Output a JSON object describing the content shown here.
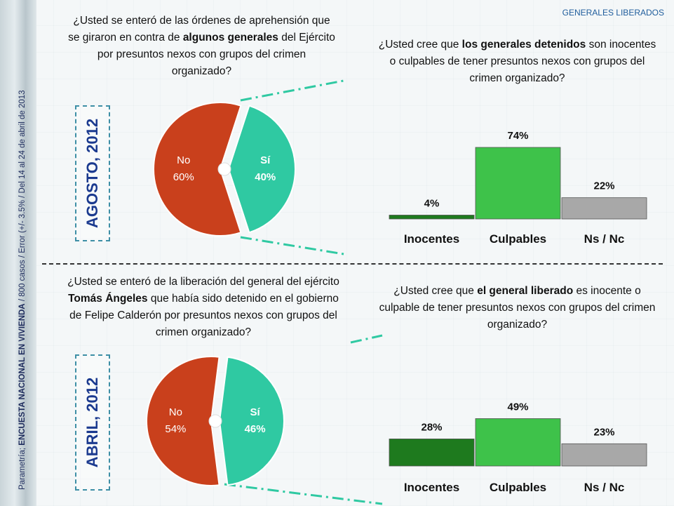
{
  "header": {
    "title": "GENERALES LIBERADOS"
  },
  "sidebar": {
    "source": "Parametría; ",
    "survey": "ENCUESTA NACIONAL EN VIVIENDA",
    "details": " / 800 casos / Error (+/- 3.5% / Del 14 al 24  de abril de 2013"
  },
  "sections": [
    {
      "period": "AGOSTO, 2012"
    },
    {
      "period": "ABRIL, 2012"
    }
  ],
  "questions": {
    "q1": {
      "pre": "¿Usted se enteró de las órdenes de aprehensión que se giraron en contra de ",
      "bold": "algunos generales",
      "post": " del Ejército por presuntos nexos con grupos del crimen organizado?"
    },
    "q2": {
      "pre": "¿Usted cree que ",
      "bold": "los generales detenidos",
      "post": " son inocentes o culpables de tener presuntos nexos con grupos del crimen organizado?"
    },
    "q3": {
      "pre": "¿Usted se enteró de la liberación del general del ejército ",
      "bold": "Tomás Ángeles",
      "post": " que había sido detenido en el gobierno  de Felipe Calderón por presuntos nexos con grupos del crimen organizado?"
    },
    "q4": {
      "pre": "¿Usted cree que ",
      "bold": "el general liberado",
      "post": " es inocente o culpable de tener presuntos nexos con grupos del crimen organizado?"
    }
  },
  "chart_data": [
    {
      "type": "pie",
      "categories": [
        "No",
        "Sí"
      ],
      "values": [
        60,
        40
      ],
      "value_labels": [
        "60%",
        "40%"
      ],
      "colors": [
        "#c9401c",
        "#2fc9a2"
      ]
    },
    {
      "type": "bar",
      "categories": [
        "Inocentes",
        "Culpables",
        "Ns / Nc"
      ],
      "values": [
        4,
        74,
        22
      ],
      "value_labels": [
        "4%",
        "74%",
        "22%"
      ],
      "colors": [
        "#1e7a1e",
        "#3ec24a",
        "#a8a8a8"
      ]
    },
    {
      "type": "pie",
      "categories": [
        "No",
        "Sí"
      ],
      "values": [
        54,
        46
      ],
      "value_labels": [
        "54%",
        "46%"
      ],
      "colors": [
        "#c9401c",
        "#2fc9a2"
      ]
    },
    {
      "type": "bar",
      "categories": [
        "Inocentes",
        "Culpables",
        "Ns / Nc"
      ],
      "values": [
        28,
        49,
        23
      ],
      "value_labels": [
        "28%",
        "49%",
        "23%"
      ],
      "colors": [
        "#1e7a1e",
        "#3ec24a",
        "#a8a8a8"
      ]
    }
  ]
}
